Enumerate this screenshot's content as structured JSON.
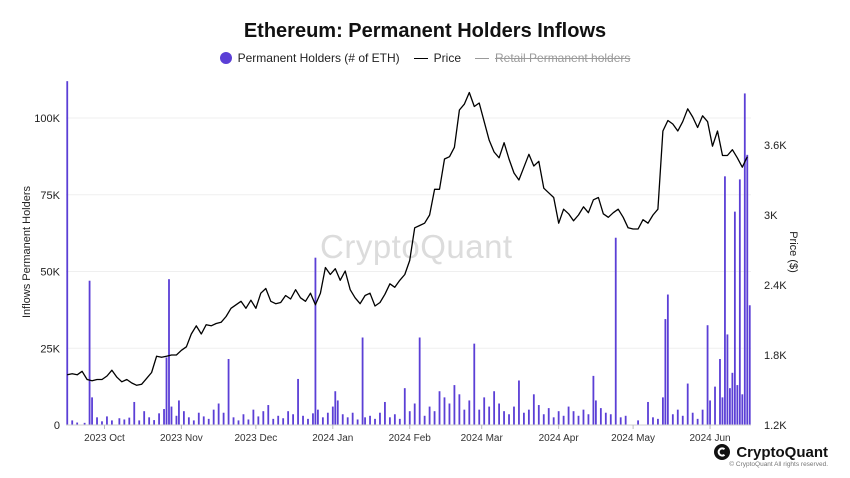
{
  "chart_data": {
    "type": "bar+line",
    "title": "Ethereum: Permanent Holders Inflows",
    "legend": [
      {
        "label": "Permanent Holders (# of ETH)",
        "color": "#5b3fd6",
        "style": "dot"
      },
      {
        "label": "Price",
        "color": "#000000",
        "style": "line"
      },
      {
        "label": "Retail Permanent holders",
        "color": "#9a9a9a",
        "style": "line-strikethrough"
      }
    ],
    "ylabel_left": "Inflows Permanent Holders",
    "ylabel_right": "Price ($)",
    "left_ticks": [
      "0",
      "25K",
      "50K",
      "75K",
      "100K"
    ],
    "left_tick_values": [
      0,
      25000,
      50000,
      75000,
      100000
    ],
    "right_ticks": [
      "1.2K",
      "1.8K",
      "2.4K",
      "3K",
      "3.6K"
    ],
    "right_tick_values": [
      1200,
      1800,
      2400,
      3000,
      3600
    ],
    "ylim_left": [
      0,
      112000
    ],
    "ylim_right": [
      1200,
      4100
    ],
    "x_tick_labels": [
      "2023 Oct",
      "2023 Nov",
      "2023 Dec",
      "2024 Jan",
      "2024 Feb",
      "2024 Mar",
      "2024 Apr",
      "2024 May",
      "2024 Jun"
    ],
    "x_tick_index": [
      15,
      46,
      76,
      107,
      138,
      167,
      198,
      228,
      259
    ],
    "bar_color": "#5b3fd6",
    "bars": [
      {
        "i": 0,
        "v": 112000
      },
      {
        "i": 2,
        "v": 1500
      },
      {
        "i": 4,
        "v": 800
      },
      {
        "i": 7,
        "v": 700
      },
      {
        "i": 9,
        "v": 47000
      },
      {
        "i": 10,
        "v": 9000
      },
      {
        "i": 12,
        "v": 2500
      },
      {
        "i": 14,
        "v": 1200
      },
      {
        "i": 16,
        "v": 2800
      },
      {
        "i": 18,
        "v": 1500
      },
      {
        "i": 21,
        "v": 2200
      },
      {
        "i": 23,
        "v": 1800
      },
      {
        "i": 25,
        "v": 2400
      },
      {
        "i": 27,
        "v": 7500
      },
      {
        "i": 29,
        "v": 1500
      },
      {
        "i": 31,
        "v": 4500
      },
      {
        "i": 33,
        "v": 2500
      },
      {
        "i": 35,
        "v": 1600
      },
      {
        "i": 37,
        "v": 3800
      },
      {
        "i": 39,
        "v": 5200
      },
      {
        "i": 40,
        "v": 22000
      },
      {
        "i": 41,
        "v": 47500
      },
      {
        "i": 42,
        "v": 6000
      },
      {
        "i": 44,
        "v": 3000
      },
      {
        "i": 45,
        "v": 8000
      },
      {
        "i": 47,
        "v": 4500
      },
      {
        "i": 49,
        "v": 2500
      },
      {
        "i": 51,
        "v": 1500
      },
      {
        "i": 53,
        "v": 4000
      },
      {
        "i": 55,
        "v": 2800
      },
      {
        "i": 57,
        "v": 2000
      },
      {
        "i": 59,
        "v": 5000
      },
      {
        "i": 61,
        "v": 7000
      },
      {
        "i": 63,
        "v": 4000
      },
      {
        "i": 65,
        "v": 21500
      },
      {
        "i": 67,
        "v": 2500
      },
      {
        "i": 69,
        "v": 1500
      },
      {
        "i": 71,
        "v": 3500
      },
      {
        "i": 73,
        "v": 1800
      },
      {
        "i": 75,
        "v": 5000
      },
      {
        "i": 77,
        "v": 2800
      },
      {
        "i": 79,
        "v": 4500
      },
      {
        "i": 81,
        "v": 6500
      },
      {
        "i": 83,
        "v": 2000
      },
      {
        "i": 85,
        "v": 3000
      },
      {
        "i": 87,
        "v": 2200
      },
      {
        "i": 89,
        "v": 4500
      },
      {
        "i": 91,
        "v": 3500
      },
      {
        "i": 93,
        "v": 15000
      },
      {
        "i": 95,
        "v": 3000
      },
      {
        "i": 97,
        "v": 2000
      },
      {
        "i": 99,
        "v": 3800
      },
      {
        "i": 100,
        "v": 54500
      },
      {
        "i": 101,
        "v": 5000
      },
      {
        "i": 103,
        "v": 2500
      },
      {
        "i": 105,
        "v": 4000
      },
      {
        "i": 107,
        "v": 6000
      },
      {
        "i": 108,
        "v": 11000
      },
      {
        "i": 109,
        "v": 8000
      },
      {
        "i": 111,
        "v": 3500
      },
      {
        "i": 113,
        "v": 2500
      },
      {
        "i": 115,
        "v": 4000
      },
      {
        "i": 117,
        "v": 1800
      },
      {
        "i": 119,
        "v": 28500
      },
      {
        "i": 120,
        "v": 2500
      },
      {
        "i": 122,
        "v": 3000
      },
      {
        "i": 124,
        "v": 2000
      },
      {
        "i": 126,
        "v": 4000
      },
      {
        "i": 128,
        "v": 7500
      },
      {
        "i": 130,
        "v": 2500
      },
      {
        "i": 132,
        "v": 3500
      },
      {
        "i": 134,
        "v": 2000
      },
      {
        "i": 136,
        "v": 12000
      },
      {
        "i": 138,
        "v": 4500
      },
      {
        "i": 140,
        "v": 7000
      },
      {
        "i": 142,
        "v": 28500
      },
      {
        "i": 144,
        "v": 3000
      },
      {
        "i": 146,
        "v": 6000
      },
      {
        "i": 148,
        "v": 4500
      },
      {
        "i": 150,
        "v": 11000
      },
      {
        "i": 152,
        "v": 9000
      },
      {
        "i": 154,
        "v": 7000
      },
      {
        "i": 156,
        "v": 13000
      },
      {
        "i": 158,
        "v": 10000
      },
      {
        "i": 160,
        "v": 5000
      },
      {
        "i": 162,
        "v": 8000
      },
      {
        "i": 164,
        "v": 26500
      },
      {
        "i": 166,
        "v": 5000
      },
      {
        "i": 168,
        "v": 9000
      },
      {
        "i": 170,
        "v": 6000
      },
      {
        "i": 172,
        "v": 11000
      },
      {
        "i": 174,
        "v": 7000
      },
      {
        "i": 176,
        "v": 4500
      },
      {
        "i": 178,
        "v": 3500
      },
      {
        "i": 180,
        "v": 6000
      },
      {
        "i": 182,
        "v": 14500
      },
      {
        "i": 184,
        "v": 4000
      },
      {
        "i": 186,
        "v": 5000
      },
      {
        "i": 188,
        "v": 10000
      },
      {
        "i": 190,
        "v": 6500
      },
      {
        "i": 192,
        "v": 3500
      },
      {
        "i": 194,
        "v": 5500
      },
      {
        "i": 196,
        "v": 2500
      },
      {
        "i": 198,
        "v": 4500
      },
      {
        "i": 200,
        "v": 3000
      },
      {
        "i": 202,
        "v": 6000
      },
      {
        "i": 204,
        "v": 4500
      },
      {
        "i": 206,
        "v": 3000
      },
      {
        "i": 208,
        "v": 5000
      },
      {
        "i": 210,
        "v": 3500
      },
      {
        "i": 212,
        "v": 16000
      },
      {
        "i": 213,
        "v": 8000
      },
      {
        "i": 215,
        "v": 5500
      },
      {
        "i": 217,
        "v": 4000
      },
      {
        "i": 219,
        "v": 3500
      },
      {
        "i": 221,
        "v": 61000
      },
      {
        "i": 223,
        "v": 2500
      },
      {
        "i": 225,
        "v": 3000
      },
      {
        "i": 230,
        "v": 1500
      },
      {
        "i": 234,
        "v": 7500
      },
      {
        "i": 236,
        "v": 2500
      },
      {
        "i": 238,
        "v": 2000
      },
      {
        "i": 240,
        "v": 9000
      },
      {
        "i": 241,
        "v": 34500
      },
      {
        "i": 242,
        "v": 42500
      },
      {
        "i": 244,
        "v": 3500
      },
      {
        "i": 246,
        "v": 5000
      },
      {
        "i": 248,
        "v": 3000
      },
      {
        "i": 250,
        "v": 13500
      },
      {
        "i": 252,
        "v": 4000
      },
      {
        "i": 254,
        "v": 2000
      },
      {
        "i": 256,
        "v": 5000
      },
      {
        "i": 258,
        "v": 32500
      },
      {
        "i": 259,
        "v": 8000
      },
      {
        "i": 261,
        "v": 12500
      },
      {
        "i": 263,
        "v": 21500
      },
      {
        "i": 264,
        "v": 9000
      },
      {
        "i": 265,
        "v": 81000
      },
      {
        "i": 266,
        "v": 29500
      },
      {
        "i": 267,
        "v": 12000
      },
      {
        "i": 268,
        "v": 17000
      },
      {
        "i": 269,
        "v": 69500
      },
      {
        "i": 270,
        "v": 13000
      },
      {
        "i": 271,
        "v": 80000
      },
      {
        "i": 272,
        "v": 10000
      },
      {
        "i": 273,
        "v": 108000
      },
      {
        "i": 274,
        "v": 88000
      },
      {
        "i": 275,
        "v": 39000
      }
    ],
    "price": [
      [
        0,
        1630
      ],
      [
        2,
        1640
      ],
      [
        4,
        1630
      ],
      [
        6,
        1660
      ],
      [
        8,
        1590
      ],
      [
        10,
        1580
      ],
      [
        12,
        1590
      ],
      [
        14,
        1590
      ],
      [
        16,
        1620
      ],
      [
        18,
        1670
      ],
      [
        20,
        1610
      ],
      [
        22,
        1570
      ],
      [
        24,
        1590
      ],
      [
        26,
        1560
      ],
      [
        28,
        1540
      ],
      [
        30,
        1550
      ],
      [
        32,
        1600
      ],
      [
        34,
        1650
      ],
      [
        36,
        1790
      ],
      [
        38,
        1780
      ],
      [
        40,
        1790
      ],
      [
        42,
        1800
      ],
      [
        44,
        1800
      ],
      [
        46,
        1840
      ],
      [
        48,
        1870
      ],
      [
        50,
        1980
      ],
      [
        52,
        2050
      ],
      [
        54,
        1980
      ],
      [
        56,
        2060
      ],
      [
        58,
        2050
      ],
      [
        60,
        2070
      ],
      [
        62,
        2080
      ],
      [
        64,
        2130
      ],
      [
        66,
        2200
      ],
      [
        68,
        2230
      ],
      [
        70,
        2260
      ],
      [
        72,
        2200
      ],
      [
        74,
        2270
      ],
      [
        76,
        2200
      ],
      [
        78,
        2330
      ],
      [
        80,
        2370
      ],
      [
        82,
        2260
      ],
      [
        84,
        2240
      ],
      [
        86,
        2250
      ],
      [
        88,
        2310
      ],
      [
        90,
        2280
      ],
      [
        92,
        2360
      ],
      [
        94,
        2290
      ],
      [
        96,
        2260
      ],
      [
        98,
        2330
      ],
      [
        100,
        2230
      ],
      [
        102,
        2330
      ],
      [
        104,
        2550
      ],
      [
        106,
        2490
      ],
      [
        108,
        2540
      ],
      [
        110,
        2440
      ],
      [
        112,
        2520
      ],
      [
        114,
        2360
      ],
      [
        116,
        2290
      ],
      [
        118,
        2240
      ],
      [
        120,
        2310
      ],
      [
        122,
        2330
      ],
      [
        124,
        2220
      ],
      [
        126,
        2250
      ],
      [
        128,
        2320
      ],
      [
        130,
        2410
      ],
      [
        132,
        2380
      ],
      [
        134,
        2440
      ],
      [
        136,
        2490
      ],
      [
        138,
        2610
      ],
      [
        140,
        2890
      ],
      [
        142,
        2910
      ],
      [
        144,
        2930
      ],
      [
        146,
        3000
      ],
      [
        148,
        3220
      ],
      [
        150,
        3220
      ],
      [
        152,
        3480
      ],
      [
        154,
        3500
      ],
      [
        156,
        3580
      ],
      [
        158,
        3900
      ],
      [
        160,
        3950
      ],
      [
        162,
        4050
      ],
      [
        164,
        3930
      ],
      [
        166,
        3960
      ],
      [
        168,
        3800
      ],
      [
        170,
        3640
      ],
      [
        172,
        3540
      ],
      [
        174,
        3490
      ],
      [
        176,
        3620
      ],
      [
        178,
        3480
      ],
      [
        180,
        3360
      ],
      [
        182,
        3300
      ],
      [
        184,
        3410
      ],
      [
        186,
        3520
      ],
      [
        188,
        3420
      ],
      [
        190,
        3460
      ],
      [
        192,
        3230
      ],
      [
        194,
        3190
      ],
      [
        196,
        3150
      ],
      [
        198,
        2930
      ],
      [
        200,
        3050
      ],
      [
        202,
        3010
      ],
      [
        204,
        2950
      ],
      [
        206,
        3000
      ],
      [
        208,
        3070
      ],
      [
        210,
        3020
      ],
      [
        212,
        3130
      ],
      [
        214,
        3150
      ],
      [
        216,
        3010
      ],
      [
        218,
        2980
      ],
      [
        220,
        3020
      ],
      [
        222,
        3050
      ],
      [
        224,
        2980
      ],
      [
        226,
        2890
      ],
      [
        228,
        2880
      ],
      [
        230,
        2880
      ],
      [
        232,
        2960
      ],
      [
        234,
        2930
      ],
      [
        236,
        3000
      ],
      [
        238,
        3050
      ],
      [
        240,
        3720
      ],
      [
        242,
        3810
      ],
      [
        244,
        3780
      ],
      [
        246,
        3720
      ],
      [
        248,
        3800
      ],
      [
        250,
        3910
      ],
      [
        252,
        3840
      ],
      [
        254,
        3750
      ],
      [
        256,
        3850
      ],
      [
        258,
        3800
      ],
      [
        260,
        3590
      ],
      [
        262,
        3720
      ],
      [
        264,
        3510
      ],
      [
        266,
        3510
      ],
      [
        268,
        3560
      ],
      [
        270,
        3490
      ],
      [
        272,
        3410
      ],
      [
        274,
        3500
      ]
    ]
  },
  "watermark": "CryptoQuant",
  "brand": {
    "name": "CryptoQuant",
    "copyright": "© CryptoQuant All rights reserved."
  }
}
